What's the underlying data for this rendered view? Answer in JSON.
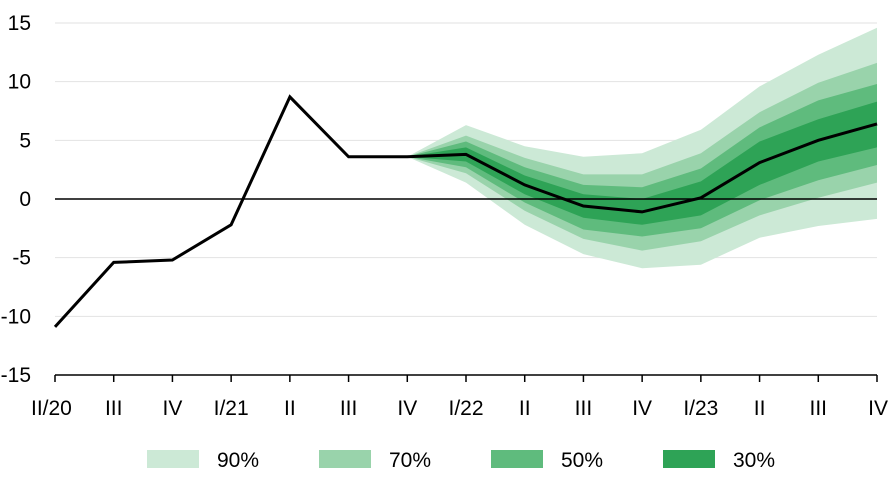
{
  "chart_data": {
    "type": "area",
    "title": "",
    "xlabel": "",
    "ylabel": "",
    "ylim": [
      -15,
      15
    ],
    "yticks": [
      "15",
      "10",
      "5",
      "0",
      "-5",
      "-10",
      "-15"
    ],
    "categories": [
      "II/20",
      "III",
      "IV",
      "I/21",
      "II",
      "III",
      "IV",
      "I/22",
      "II",
      "III",
      "IV",
      "I/23",
      "II",
      "III",
      "IV"
    ],
    "grid": true,
    "zero_line": true,
    "legend_position": "bottom",
    "series": [
      {
        "values": [
          -10.9,
          -5.4,
          -5.2,
          -2.2,
          8.7,
          3.6,
          3.6,
          3.8,
          1.2,
          -0.6,
          -1.1,
          0.1,
          3.1,
          5.0,
          6.4
        ],
        "color": "#000000"
      }
    ],
    "fan": {
      "start_index": 6,
      "bands": [
        {
          "label": "90%",
          "color": "#cce9d6",
          "lower": [
            3.6,
            1.4,
            -2.2,
            -4.7,
            -5.9,
            -5.6,
            -3.3,
            -2.3,
            -1.7
          ],
          "upper": [
            3.6,
            6.3,
            4.5,
            3.6,
            3.9,
            5.9,
            9.6,
            12.3,
            14.6
          ]
        },
        {
          "label": "70%",
          "color": "#99d3ab",
          "lower": [
            3.6,
            2.2,
            -1.0,
            -3.4,
            -4.4,
            -3.6,
            -1.4,
            0.1,
            1.4
          ],
          "upper": [
            3.6,
            5.4,
            3.5,
            2.1,
            2.1,
            3.9,
            7.4,
            9.9,
            11.6
          ]
        },
        {
          "label": "50%",
          "color": "#5fbb7d",
          "lower": [
            3.6,
            2.7,
            -0.3,
            -2.6,
            -3.2,
            -2.5,
            -0.1,
            1.6,
            2.9
          ],
          "upper": [
            3.6,
            4.9,
            2.7,
            1.2,
            1.0,
            2.6,
            6.1,
            8.4,
            9.8
          ]
        },
        {
          "label": "30%",
          "color": "#2ea356",
          "lower": [
            3.6,
            3.2,
            0.4,
            -1.6,
            -2.2,
            -1.4,
            1.2,
            3.2,
            4.4
          ],
          "upper": [
            3.6,
            4.4,
            2.0,
            0.4,
            0.0,
            1.5,
            4.9,
            6.8,
            8.3
          ]
        }
      ]
    }
  }
}
